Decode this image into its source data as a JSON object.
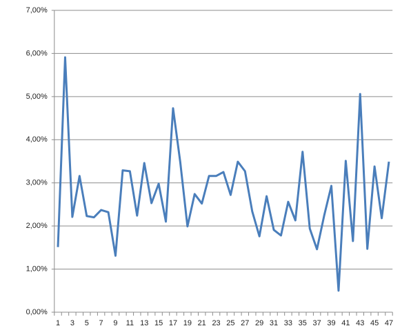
{
  "chart_data": {
    "type": "line",
    "categories": [
      "1",
      null,
      "3",
      null,
      "5",
      null,
      "7",
      null,
      "9",
      null,
      "11",
      null,
      "13",
      null,
      "15",
      null,
      "17",
      null,
      "19",
      null,
      "21",
      null,
      "23",
      null,
      "25",
      null,
      "27",
      null,
      "29",
      null,
      "31",
      null,
      "33",
      null,
      "35",
      null,
      "37",
      null,
      "39",
      null,
      "41",
      null,
      "43",
      null,
      "45",
      null,
      "47"
    ],
    "series": [
      {
        "color": "#4a7ebb",
        "values": [
          1.51,
          5.91,
          2.21,
          3.16,
          2.23,
          2.2,
          2.37,
          2.32,
          1.31,
          3.29,
          3.27,
          2.24,
          3.46,
          2.53,
          2.98,
          2.1,
          4.73,
          3.48,
          1.99,
          2.74,
          2.52,
          3.16,
          3.16,
          3.25,
          2.72,
          3.49,
          3.27,
          2.34,
          1.76,
          2.69,
          1.91,
          1.78,
          2.56,
          2.13,
          3.72,
          1.94,
          1.46,
          2.24,
          2.93,
          0.5,
          3.51,
          1.65,
          5.06,
          1.47,
          3.38,
          2.18,
          3.49
        ]
      }
    ],
    "ylim": [
      0,
      7
    ],
    "yticks": [
      {
        "value": 0,
        "label": "0,00%"
      },
      {
        "value": 1,
        "label": "1,00%"
      },
      {
        "value": 2,
        "label": "2,00%"
      },
      {
        "value": 3,
        "label": "3,00%"
      },
      {
        "value": 4,
        "label": "4,00%"
      },
      {
        "value": 5,
        "label": "5,00%"
      },
      {
        "value": 6,
        "label": "6,00%"
      },
      {
        "value": 7,
        "label": "7,00%"
      }
    ],
    "grid": true
  }
}
